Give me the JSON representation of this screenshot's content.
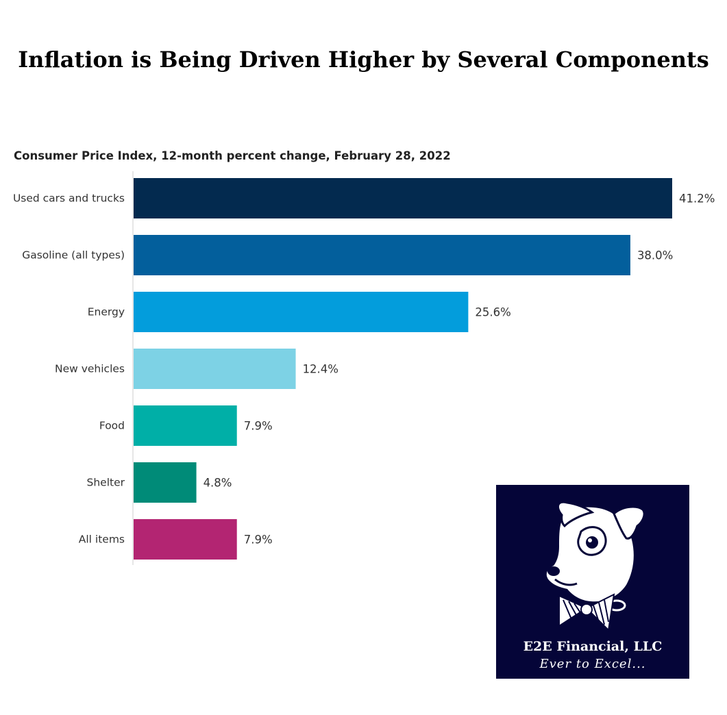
{
  "title": "Inflation is Being Driven Higher by Several Components",
  "subtitle": "Consumer Price Index, 12-month percent change, February 28, 2022",
  "chart_data": {
    "type": "bar",
    "orientation": "horizontal",
    "title": "Inflation is Being Driven Higher by Several Components",
    "subtitle": "Consumer Price Index, 12-month percent change, February 28, 2022",
    "categories": [
      "Used cars and trucks",
      "Gasoline (all types)",
      "Energy",
      "New vehicles",
      "Food",
      "Shelter",
      "All items"
    ],
    "values": [
      41.2,
      38.0,
      25.6,
      12.4,
      7.9,
      4.8,
      7.9
    ],
    "value_labels": [
      "41.2%",
      "38.0%",
      "25.6%",
      "12.4%",
      "7.9%",
      "4.8%",
      "7.9%"
    ],
    "colors": [
      "#032a4f",
      "#035f9c",
      "#039ddc",
      "#7dd2e5",
      "#00afa7",
      "#008b78",
      "#b32572"
    ],
    "xlim": [
      0,
      41.2
    ],
    "grid": false,
    "legend": "none"
  },
  "logo": {
    "name": "E2E Financial, LLC",
    "tagline": "Ever to Excel...",
    "icon": "dog-with-bowtie-icon",
    "background": "#050538"
  }
}
